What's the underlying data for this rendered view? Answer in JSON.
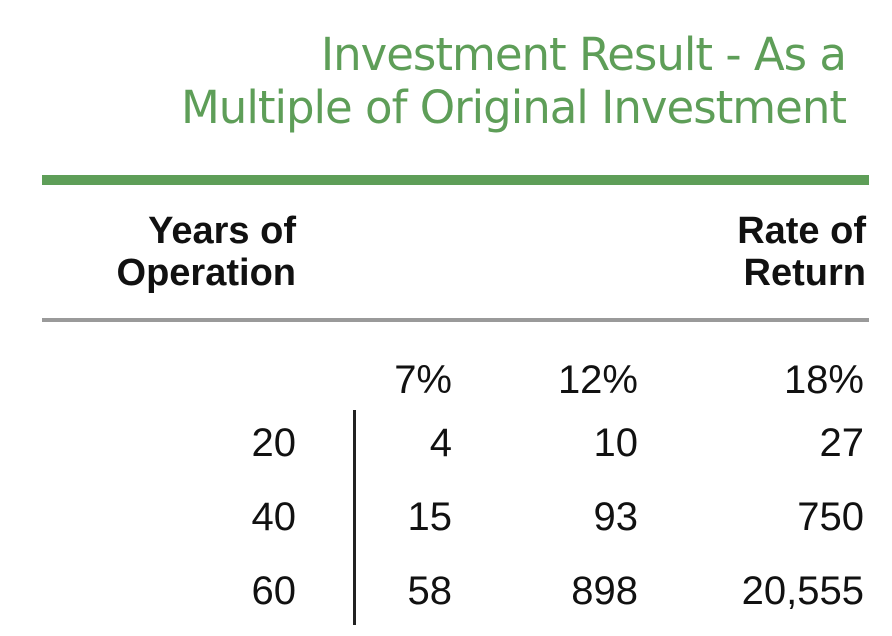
{
  "colors": {
    "accent": "#5e9e58",
    "rule": "#9a9a9a",
    "text": "#111111"
  },
  "title_lines": [
    "Investment Result - As a",
    "Multiple of Original Investment"
  ],
  "headers": {
    "row_label": [
      "Years of",
      "Operation"
    ],
    "col_label": [
      "Rate of",
      "Return"
    ]
  },
  "chart_data": {
    "type": "table",
    "title": "Investment Result - As a Multiple of Original Investment",
    "columns": [
      "7%",
      "12%",
      "18%"
    ],
    "rows": [
      {
        "year": "20",
        "values": [
          "4",
          "10",
          "27"
        ]
      },
      {
        "year": "40",
        "values": [
          "15",
          "93",
          "750"
        ]
      },
      {
        "year": "60",
        "values": [
          "58",
          "898",
          "20,555"
        ]
      }
    ]
  }
}
